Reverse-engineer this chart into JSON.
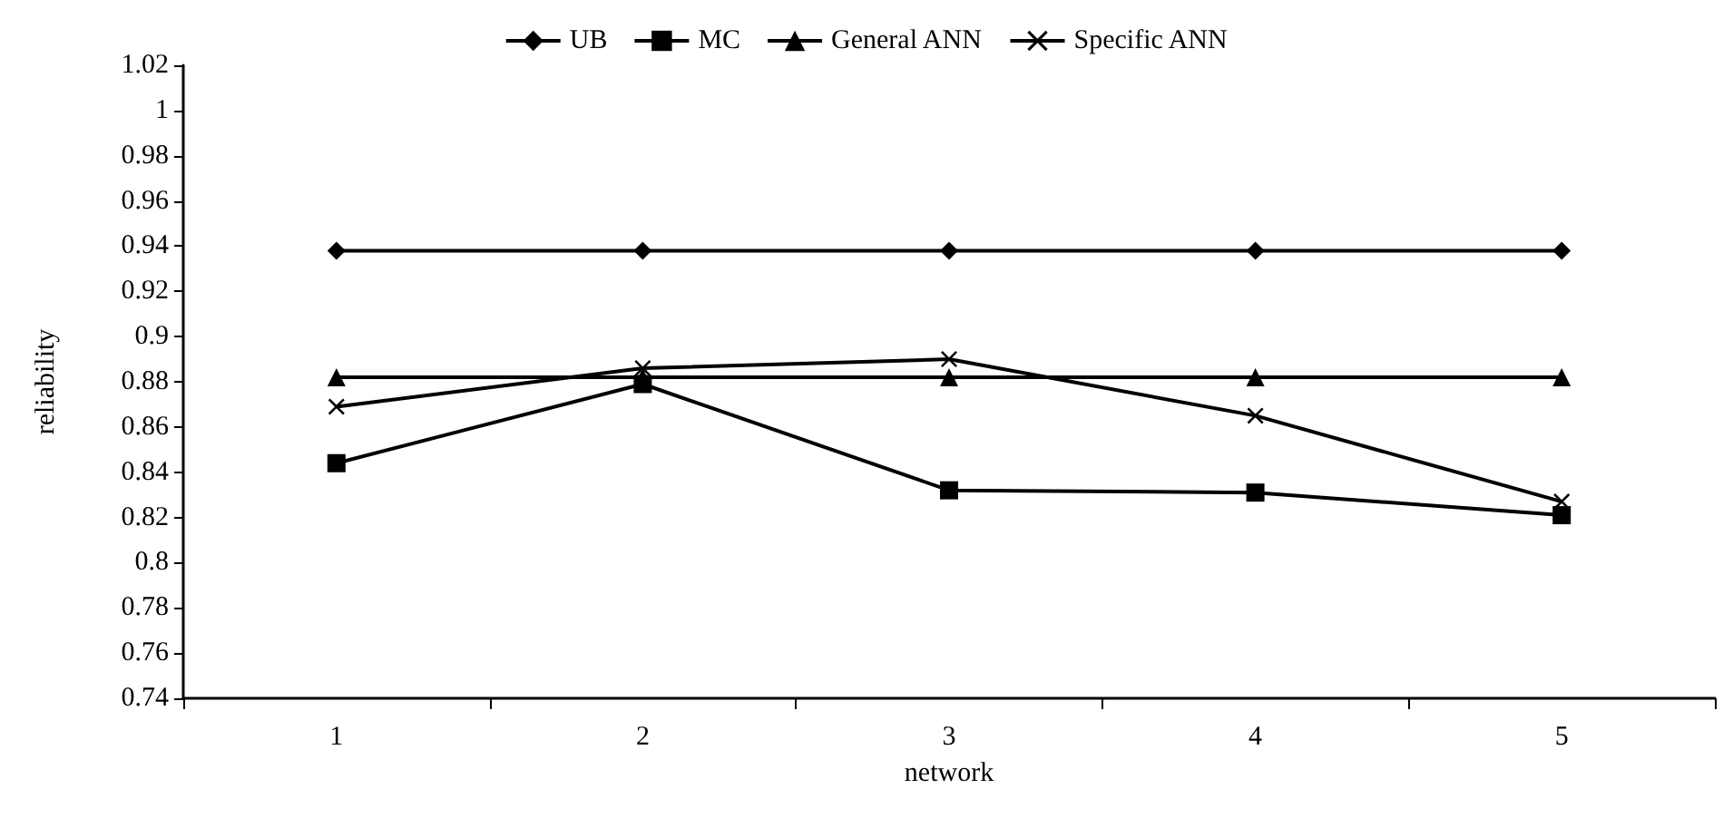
{
  "chart_data": {
    "type": "line",
    "xlabel": "network",
    "ylabel": "reliability",
    "categories": [
      "1",
      "2",
      "3",
      "4",
      "5"
    ],
    "series": [
      {
        "name": "UB",
        "color": "#000000",
        "marker": "diamond",
        "values": [
          0.938,
          0.938,
          0.938,
          0.938,
          0.938
        ]
      },
      {
        "name": "MC",
        "color": "#000000",
        "marker": "square",
        "values": [
          0.844,
          0.879,
          0.832,
          0.831,
          0.821
        ]
      },
      {
        "name": "General ANN",
        "color": "#000000",
        "marker": "triangle",
        "values": [
          0.882,
          0.882,
          0.882,
          0.882,
          0.882
        ]
      },
      {
        "name": "Specific ANN",
        "color": "#000000",
        "marker": "cross",
        "values": [
          0.869,
          0.886,
          0.89,
          0.865,
          0.827
        ]
      }
    ],
    "ylim": [
      0.74,
      1.02
    ],
    "yticks": [
      0.74,
      0.76,
      0.78,
      0.8,
      0.82,
      0.84,
      0.86,
      0.88,
      0.9,
      0.92,
      0.94,
      0.96,
      0.98,
      1,
      1.02
    ],
    "grid": false,
    "legend": "top",
    "line_style": "solid"
  }
}
